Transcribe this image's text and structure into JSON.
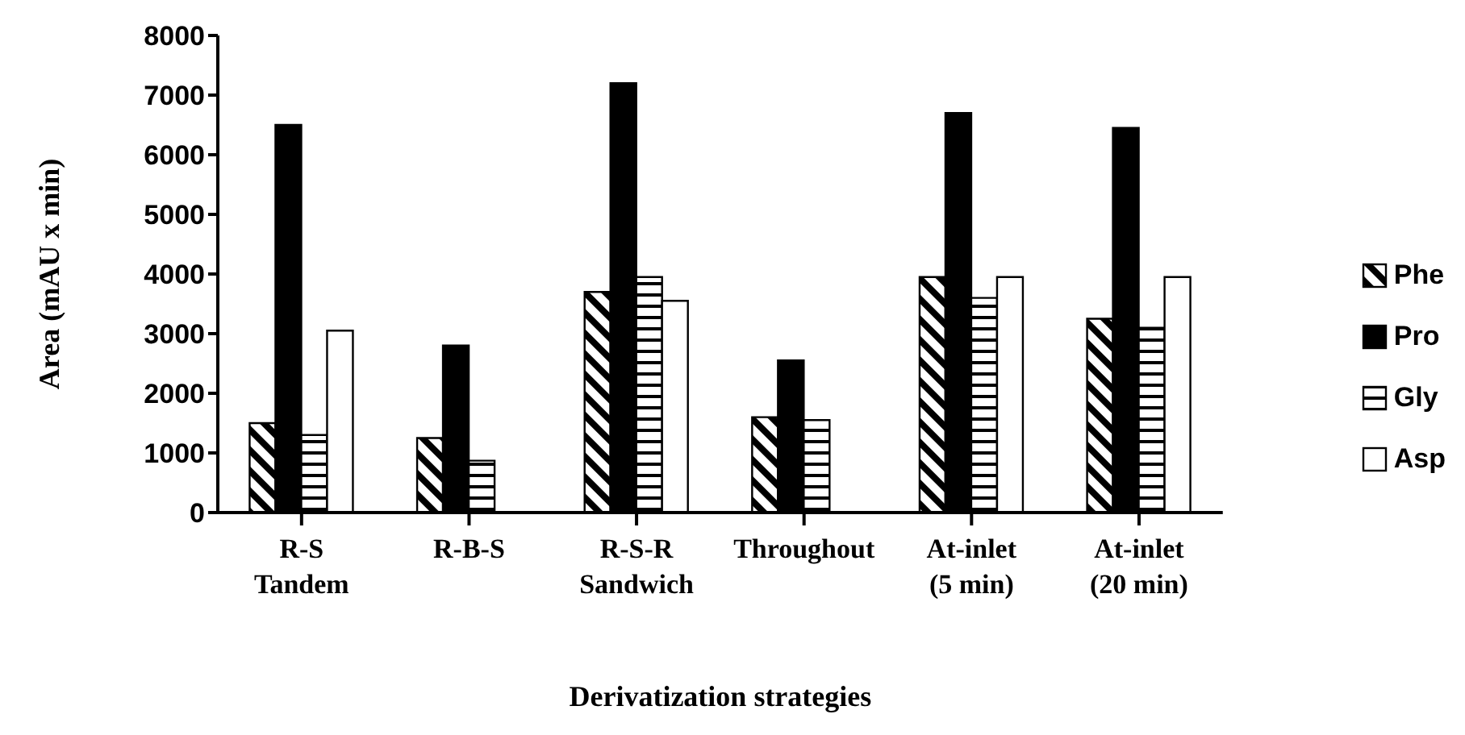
{
  "chart_data": {
    "type": "bar",
    "xlabel": "Derivatization strategies",
    "ylabel": "Area (mAU x min)",
    "categories": [
      "R-S\nTandem",
      "R-B-S",
      "R-S-R\nSandwich",
      "Throughout",
      "At-inlet\n(5 min)",
      "At-inlet\n(20 min)"
    ],
    "series": [
      {
        "name": "Phe",
        "color": "#000000",
        "values": [
          1500,
          1250,
          3700,
          1600,
          3950,
          3250
        ]
      },
      {
        "name": "Pro",
        "color": "#000000",
        "values": [
          6500,
          2800,
          7200,
          2550,
          6700,
          6450
        ]
      },
      {
        "name": "Gly",
        "color": "#000000",
        "values": [
          1300,
          870,
          3950,
          1550,
          3600,
          3100
        ]
      },
      {
        "name": "Asp",
        "color": "#ffffff",
        "values": [
          3050,
          null,
          3550,
          null,
          3950,
          3950
        ]
      }
    ],
    "ylim": [
      0,
      8000
    ],
    "yticks": [
      0,
      1000,
      2000,
      3000,
      4000,
      5000,
      6000,
      7000,
      8000
    ],
    "grid": false,
    "legend": "right"
  }
}
